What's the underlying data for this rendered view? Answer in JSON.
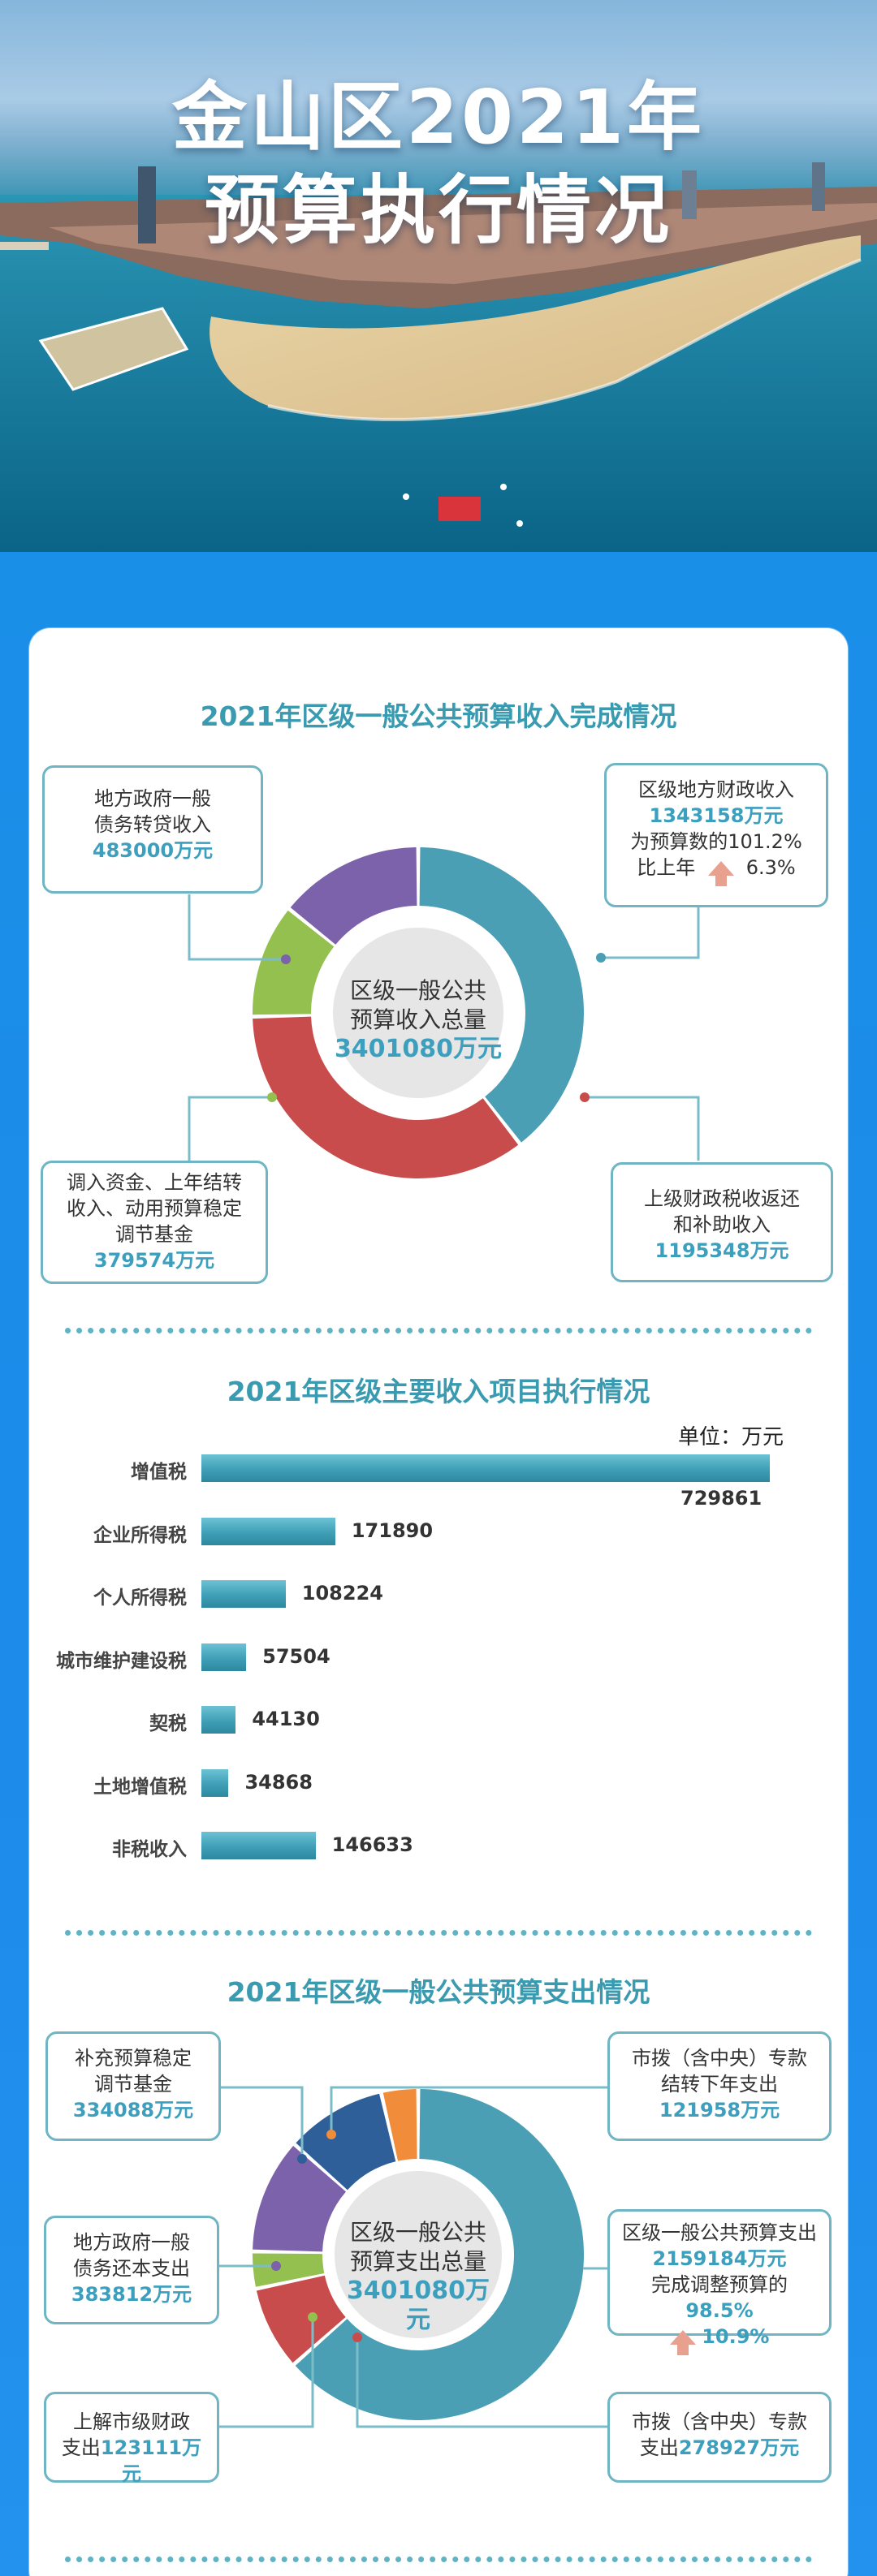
{
  "hero": {
    "title_line1": "金山区2021年",
    "title_line2": "预算执行情况"
  },
  "income_section": {
    "title": "2021年区级一般公共预算收入完成情况",
    "center_label": "区级一般公共预算收入总量",
    "center_label_l1": "区级一般公共",
    "center_label_l2": "预算收入总量",
    "center_value": "3401080万元",
    "callouts": {
      "debt": {
        "l1": "地方政府一般",
        "l2": "债务转贷收入",
        "value": "483000万元"
      },
      "local": {
        "l1": "区级地方财政收入",
        "value": "1343158万元",
        "l2": "为预算数的101.2%",
        "l3_prefix": "比上年",
        "l3_value": "6.3%"
      },
      "transfer": {
        "l1": "调入资金、上年结转",
        "l2": "收入、动用预算稳定",
        "l3": "调节基金",
        "value": "379574万元"
      },
      "upper": {
        "l1": "上级财政税收返还",
        "l2": "和补助收入",
        "value": "1195348万元"
      }
    },
    "colors": {
      "local": "#4a9fb5",
      "upper": "#c94c4c",
      "transfer": "#93c04f",
      "debt": "#7b62aa"
    }
  },
  "tax_section": {
    "title": "2021年区级主要收入项目执行情况",
    "unit": "单位：万元"
  },
  "chart_data": {
    "type": "bar",
    "title": "2021年区级主要收入项目执行情况",
    "unit": "单位：万元",
    "categories": [
      "增值税",
      "企业所得税",
      "个人所得税",
      "城市维护建设税",
      "契税",
      "土地增值税",
      "非税收入"
    ],
    "values": [
      729861,
      171890,
      108224,
      57504,
      44130,
      34868,
      146633
    ]
  },
  "expense_section": {
    "title": "2021年区级一般公共预算支出情况",
    "center_label_l1": "区级一般公共",
    "center_label_l2": "预算支出总量",
    "center_value": "3401080万元",
    "callouts": {
      "fund": {
        "l1": "补充预算稳定",
        "l2": "调节基金",
        "value": "334088万元"
      },
      "debt": {
        "l1": "地方政府一般",
        "l2": "债务还本支出",
        "value": "383812万元"
      },
      "upper": {
        "l1": "上解市级财政",
        "l2_prefix": "支出",
        "value": "123111万元"
      },
      "carry": {
        "l1": "市拨（含中央）专款",
        "l2": "结转下年支出",
        "value": "121958万元"
      },
      "general": {
        "l1": "区级一般公共预算支出",
        "value": "2159184万元",
        "l2_prefix": "完成调整预算的",
        "l2_value": "98.5%",
        "l3_value": "10.9%"
      },
      "special": {
        "l1": "市拨（含中央）专款",
        "l2_prefix": "支出",
        "value": "278927万元"
      }
    },
    "colors": {
      "general": "#4a9fb5",
      "special": "#c94c4c",
      "upper": "#93c04f",
      "debt": "#7b62aa",
      "fund": "#2f5f99",
      "carry": "#f08c3a"
    }
  }
}
